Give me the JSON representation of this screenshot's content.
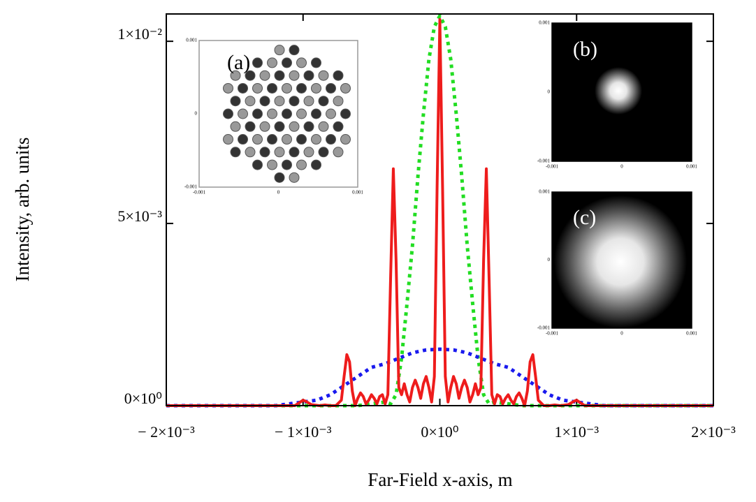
{
  "chart_data": {
    "type": "line",
    "xlabel": "Far-Field x-axis, m",
    "ylabel": "Intensity, arb. units",
    "xlim": [
      -0.002,
      0.002
    ],
    "ylim": [
      0,
      0.01075
    ],
    "xticks": [
      {
        "value": -0.002,
        "label": "− 2×10⁻³"
      },
      {
        "value": -0.001,
        "label": "− 1×10⁻³"
      },
      {
        "value": 0,
        "label": "0×10⁰"
      },
      {
        "value": 0.001,
        "label": "1×10⁻³"
      },
      {
        "value": 0.002,
        "label": "2×10⁻³"
      }
    ],
    "yticks": [
      {
        "value": 0,
        "label": "0×10⁰"
      },
      {
        "value": 0.005,
        "label": "5×10⁻³"
      },
      {
        "value": 0.01,
        "label": "1×10⁻²"
      }
    ],
    "series": [
      {
        "color": "#ee1c1c",
        "style": "solid",
        "x": [
          -0.002,
          -0.00106,
          -0.00102,
          -0.001,
          -0.00098,
          -0.00094,
          -0.00088,
          -0.00084,
          -0.0008,
          -0.00076,
          -0.00072,
          -0.0007,
          -0.00068,
          -0.00066,
          -0.00064,
          -0.00062,
          -0.0006,
          -0.00058,
          -0.00056,
          -0.00054,
          -0.00052,
          -0.0005,
          -0.00048,
          -0.00046,
          -0.00044,
          -0.00042,
          -0.0004,
          -0.00038,
          -0.00036,
          -0.00034,
          -0.00032,
          -0.0003,
          -0.00028,
          -0.00026,
          -0.00024,
          -0.00022,
          -0.0002,
          -0.00018,
          -0.00016,
          -0.00014,
          -0.00012,
          -0.0001,
          -8e-05,
          -6e-05,
          -4e-05,
          -2e-05,
          0,
          2e-05,
          4e-05,
          6e-05,
          8e-05,
          0.0001,
          0.00012,
          0.00014,
          0.00016,
          0.00018,
          0.0002,
          0.00022,
          0.00024,
          0.00026,
          0.00028,
          0.0003,
          0.00032,
          0.00034,
          0.00036,
          0.00038,
          0.0004,
          0.00042,
          0.00044,
          0.00046,
          0.00048,
          0.0005,
          0.00052,
          0.00054,
          0.00056,
          0.00058,
          0.0006,
          0.00062,
          0.00064,
          0.00066,
          0.00068,
          0.0007,
          0.00072,
          0.00076,
          0.0008,
          0.00084,
          0.00088,
          0.00094,
          0.00098,
          0.001,
          0.00102,
          0.00106,
          0.002
        ],
        "values": [
          0,
          0,
          0.0001,
          0.00015,
          0.00012,
          3e-05,
          0,
          2e-05,
          0,
          0,
          0.00015,
          0.0008,
          0.0014,
          0.0012,
          0.0004,
          0,
          0.0002,
          0.00035,
          0.00025,
          5e-05,
          0.00015,
          0.0003,
          0.0002,
          5e-05,
          0.00025,
          0.0003,
          5e-05,
          0.0003,
          0.0035,
          0.0065,
          0.004,
          0.0005,
          0.0003,
          0.0006,
          0.0003,
          0.0001,
          0.0005,
          0.0007,
          0.0005,
          0.0002,
          0.0006,
          0.0008,
          0.0005,
          0.0001,
          0.0008,
          0.006,
          0.0106,
          0.006,
          0.0008,
          0.0001,
          0.0005,
          0.0008,
          0.0006,
          0.0002,
          0.0005,
          0.0007,
          0.0005,
          0.0001,
          0.0003,
          0.0006,
          0.0003,
          0.0005,
          0.004,
          0.0065,
          0.0035,
          0.0003,
          5e-05,
          0.0003,
          0.00025,
          5e-05,
          0.0002,
          0.0003,
          0.00015,
          5e-05,
          0.00025,
          0.00035,
          0.0002,
          0,
          0.0004,
          0.0012,
          0.0014,
          0.0008,
          0.00015,
          0,
          0,
          2e-05,
          0,
          3e-05,
          0.00012,
          0.00015,
          0.0001,
          0,
          0
        ]
      },
      {
        "color": "#22dd22",
        "style": "dotted",
        "x": [
          -0.002,
          -0.0006,
          -0.0005,
          -0.0004,
          -0.00036,
          -0.00032,
          -0.00028,
          -0.00024,
          -0.0002,
          -0.00016,
          -0.00012,
          -8e-05,
          -4e-05,
          0,
          4e-05,
          8e-05,
          0.00012,
          0.00016,
          0.0002,
          0.00024,
          0.00028,
          0.00032,
          0.00036,
          0.0004,
          0.0005,
          0.0006,
          0.002
        ],
        "values": [
          0,
          0,
          5e-05,
          0.0001,
          5e-05,
          0.0003,
          0.0013,
          0.0028,
          0.0044,
          0.0063,
          0.008,
          0.0095,
          0.0104,
          0.0107,
          0.0104,
          0.0095,
          0.008,
          0.0063,
          0.0044,
          0.0028,
          0.0013,
          0.0003,
          5e-05,
          0.0001,
          5e-05,
          0,
          0
        ]
      },
      {
        "color": "#1a1aee",
        "style": "dotted",
        "x": [
          -0.002,
          -0.0012,
          -0.0011,
          -0.001,
          -0.0009,
          -0.0008,
          -0.0007,
          -0.0006,
          -0.0005,
          -0.0004,
          -0.0003,
          -0.0002,
          -0.0001,
          0,
          0.0001,
          0.0002,
          0.0003,
          0.0004,
          0.0005,
          0.0006,
          0.0007,
          0.0008,
          0.0009,
          0.001,
          0.0011,
          0.0012,
          0.002
        ],
        "values": [
          0,
          0,
          5e-05,
          0.0001,
          0.00015,
          0.0003,
          0.00055,
          0.0008,
          0.00105,
          0.00115,
          0.0013,
          0.00145,
          0.00153,
          0.00155,
          0.00153,
          0.00145,
          0.0013,
          0.00115,
          0.00105,
          0.0008,
          0.00055,
          0.0003,
          0.00015,
          0.0001,
          5e-05,
          0,
          0
        ]
      }
    ],
    "insets": [
      {
        "label": "(a)",
        "yticks": [
          "0.001",
          "0",
          "-0.001"
        ],
        "xticks": [
          "-0.001",
          "0",
          "0.001"
        ]
      },
      {
        "label": "(b)",
        "yticks": [
          "0.001",
          "0",
          "-0.001"
        ],
        "xticks": [
          "-0.001",
          "0",
          "0.001"
        ]
      },
      {
        "label": "(c)",
        "yticks": [
          "0.001",
          "0",
          "-0.001"
        ],
        "xticks": [
          "-0.001",
          "0",
          "0.001"
        ]
      }
    ]
  }
}
